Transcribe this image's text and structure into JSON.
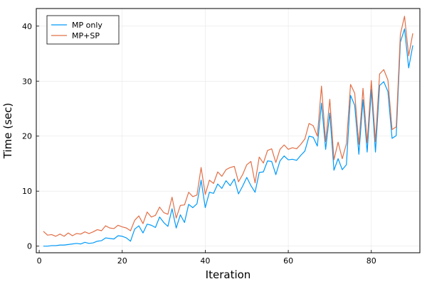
{
  "chart_data": {
    "type": "line",
    "title": "",
    "xlabel": "Iteration",
    "ylabel": "Time (sec)",
    "xlim": [
      -0.7,
      91.7
    ],
    "ylim": [
      -1.2,
      43.2
    ],
    "xticks": [
      0,
      20,
      40,
      60,
      80
    ],
    "yticks": [
      0,
      10,
      20,
      30,
      40
    ],
    "grid": true,
    "legend_position": "top-left",
    "x": [
      1,
      2,
      3,
      4,
      5,
      6,
      7,
      8,
      9,
      10,
      11,
      12,
      13,
      14,
      15,
      16,
      17,
      18,
      19,
      20,
      21,
      22,
      23,
      24,
      25,
      26,
      27,
      28,
      29,
      30,
      31,
      32,
      33,
      34,
      35,
      36,
      37,
      38,
      39,
      40,
      41,
      42,
      43,
      44,
      45,
      46,
      47,
      48,
      49,
      50,
      51,
      52,
      53,
      54,
      55,
      56,
      57,
      58,
      59,
      60,
      61,
      62,
      63,
      64,
      65,
      66,
      67,
      68,
      69,
      70,
      71,
      72,
      73,
      74,
      75,
      76,
      77,
      78,
      79,
      80,
      81,
      82,
      83,
      84,
      85,
      86,
      87,
      88,
      89,
      90
    ],
    "series": [
      {
        "name": "MP only",
        "color": "#009af9",
        "values": [
          0.0,
          0.0,
          0.1,
          0.1,
          0.2,
          0.2,
          0.3,
          0.4,
          0.5,
          0.4,
          0.7,
          0.5,
          0.6,
          0.9,
          1.0,
          1.5,
          1.4,
          1.3,
          1.9,
          1.8,
          1.5,
          0.9,
          3.1,
          3.7,
          2.4,
          4.0,
          3.8,
          3.4,
          5.3,
          4.3,
          3.6,
          6.8,
          3.3,
          5.7,
          4.3,
          7.6,
          7.0,
          7.7,
          12.0,
          7.0,
          9.8,
          9.6,
          11.3,
          10.5,
          11.9,
          11.0,
          12.2,
          9.5,
          10.9,
          12.5,
          11.0,
          9.8,
          13.4,
          13.5,
          15.5,
          15.4,
          13.0,
          15.5,
          16.4,
          15.7,
          15.8,
          15.6,
          16.5,
          17.3,
          20.0,
          19.8,
          18.2,
          26.0,
          17.6,
          24.2,
          13.8,
          15.9,
          13.9,
          14.8,
          27.4,
          25.6,
          16.7,
          26.6,
          17.1,
          28.5,
          17.1,
          29.2,
          29.9,
          28.1,
          19.6,
          20.1,
          37.1,
          39.5,
          32.4,
          36.5
        ]
      },
      {
        "name": "MP+SP",
        "color": "#e26f46",
        "values": [
          2.7,
          2.0,
          2.1,
          1.8,
          2.2,
          1.8,
          2.4,
          1.9,
          2.3,
          2.2,
          2.6,
          2.3,
          2.6,
          3.0,
          2.8,
          3.7,
          3.3,
          3.2,
          3.8,
          3.5,
          3.3,
          2.8,
          4.7,
          5.5,
          4.1,
          6.2,
          5.3,
          5.6,
          7.1,
          6.1,
          5.8,
          8.9,
          5.1,
          7.4,
          7.5,
          9.8,
          9.0,
          9.3,
          14.3,
          9.4,
          12.0,
          11.4,
          13.5,
          12.7,
          13.9,
          14.3,
          14.5,
          11.7,
          13.0,
          14.8,
          15.4,
          11.5,
          16.2,
          15.1,
          17.4,
          17.7,
          15.2,
          17.6,
          18.4,
          17.6,
          17.9,
          17.7,
          18.5,
          19.5,
          22.3,
          21.9,
          20.0,
          29.1,
          19.0,
          26.7,
          15.7,
          18.9,
          15.9,
          18.6,
          29.4,
          27.8,
          18.5,
          28.7,
          18.8,
          30.1,
          19.0,
          31.3,
          32.1,
          30.2,
          21.2,
          21.7,
          38.5,
          41.8,
          34.6,
          38.7
        ]
      }
    ]
  }
}
